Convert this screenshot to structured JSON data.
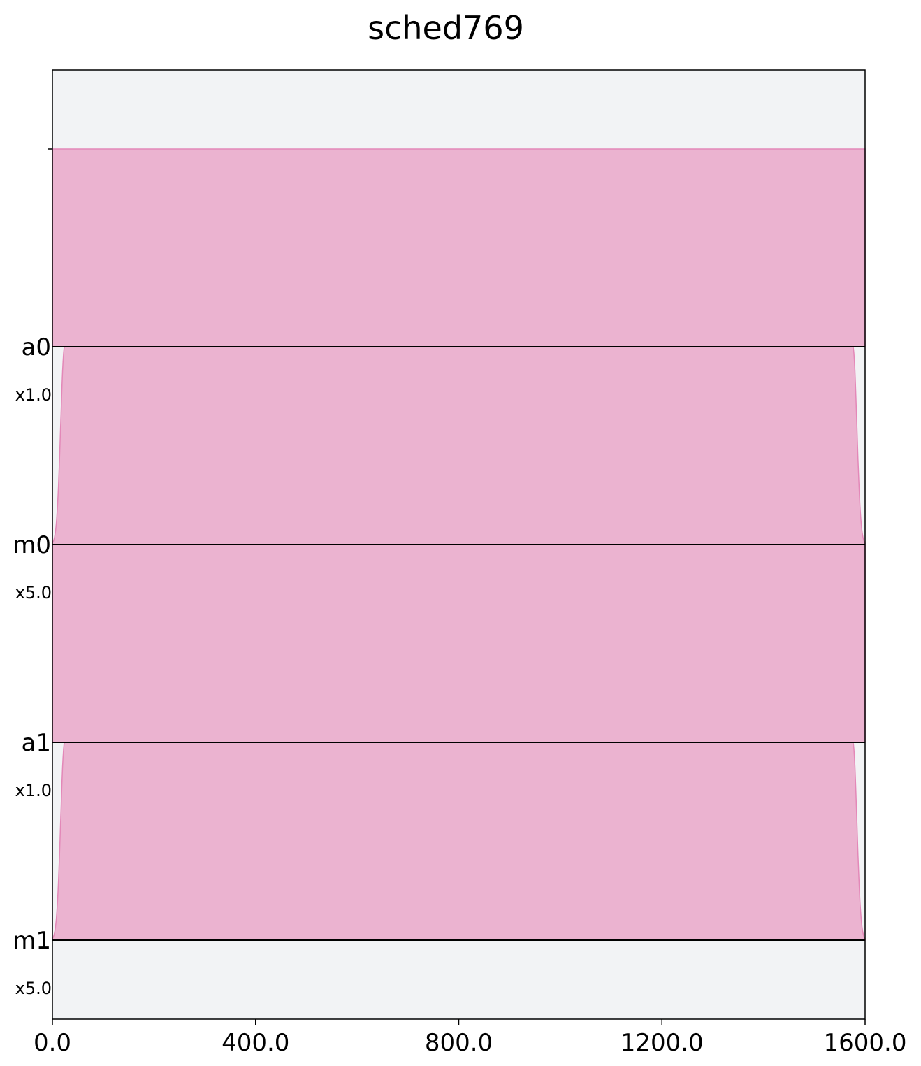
{
  "chart_data": {
    "type": "area",
    "title": "sched769",
    "xlim": [
      0,
      1600
    ],
    "x_ticks": [
      "0.0",
      "400.0",
      "800.0",
      "1200.0",
      "1600.0"
    ],
    "x_tick_values": [
      0,
      400,
      800,
      1200,
      1600
    ],
    "grid": false,
    "channels": [
      {
        "name": "a0",
        "scale": "x1.0",
        "pulse": {
          "start": 0,
          "end": 1600,
          "ramp": 24,
          "shape": "flat-top"
        }
      },
      {
        "name": "m0",
        "scale": "x5.0",
        "pulse": {
          "start": 0,
          "end": 1600,
          "ramp": 24,
          "shape": "gaussian-square"
        }
      },
      {
        "name": "a1",
        "scale": "x1.0",
        "pulse": {
          "start": 0,
          "end": 1600,
          "ramp": 24,
          "shape": "flat-top"
        }
      },
      {
        "name": "m1",
        "scale": "x5.0",
        "pulse": {
          "start": 0,
          "end": 1600,
          "ramp": 24,
          "shape": "gaussian-square"
        }
      }
    ],
    "colors": {
      "pulse_fill": "#ebb3d0",
      "pulse_edge": "#e388b8",
      "background": "#f2f3f5",
      "baseline": "#000000"
    }
  }
}
